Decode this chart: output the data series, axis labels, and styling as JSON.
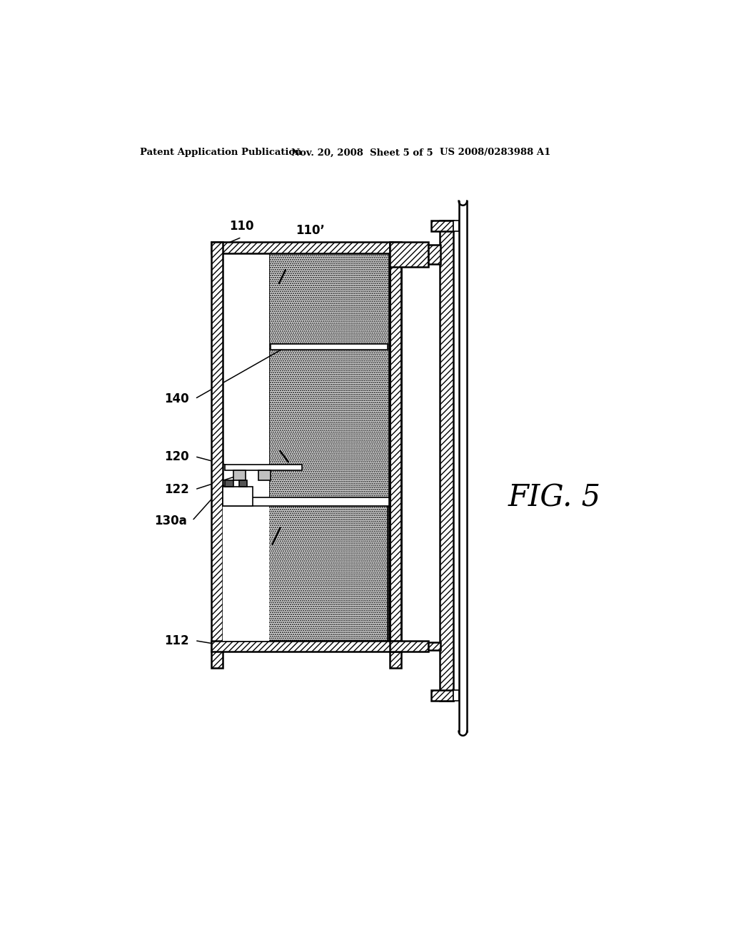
{
  "title_left": "Patent Application Publication",
  "title_mid": "Nov. 20, 2008  Sheet 5 of 5",
  "title_right": "US 2008/0283988 A1",
  "fig_label": "FIG. 5",
  "labels": {
    "110": "110",
    "110p_top": "110’",
    "140": "140",
    "120": "120",
    "122": "122",
    "130a": "130a",
    "112": "112"
  },
  "bg_color": "#ffffff",
  "line_color": "#000000"
}
